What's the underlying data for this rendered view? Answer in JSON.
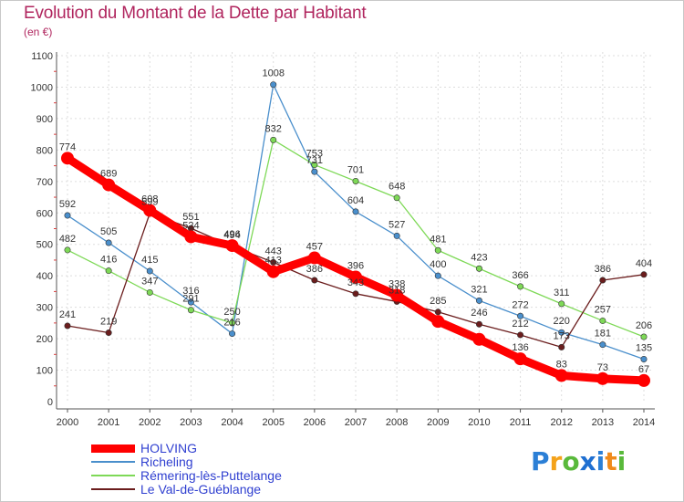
{
  "title": "Evolution du Montant de la Dette par Habitant",
  "subtitle": "(en €)",
  "logo": [
    "P",
    "r",
    "o",
    "x",
    "i",
    "t",
    "i"
  ],
  "chart_data": {
    "type": "line",
    "ylim": [
      0,
      1100
    ],
    "yticks": [
      0,
      100,
      200,
      300,
      400,
      500,
      600,
      700,
      800,
      900,
      1000,
      1100
    ],
    "x": [
      "2000",
      "2001",
      "2002",
      "2003",
      "2004",
      "2005",
      "2006",
      "2007",
      "2008",
      "2009",
      "2010",
      "2011",
      "2012",
      "2013",
      "2014"
    ],
    "grid": true,
    "legend_position": "bottom-left",
    "series": [
      {
        "name": "HOLVING",
        "color": "#ff0000",
        "values": [
          774,
          689,
          608,
          524,
          496,
          413,
          457,
          396,
          338,
          255,
          198,
          136,
          83,
          73,
          67
        ],
        "labels": [
          "774",
          "689",
          "608",
          "524",
          "496",
          "413",
          "457",
          "396",
          "338",
          "",
          "",
          "136",
          "83",
          "73",
          "67"
        ]
      },
      {
        "name": "Richeling",
        "color": "#4a8fcc",
        "values": [
          592,
          505,
          415,
          316,
          216,
          1008,
          731,
          604,
          527,
          400,
          321,
          272,
          220,
          181,
          135
        ],
        "labels": [
          "592",
          "505",
          "415",
          "316",
          "216",
          "1008",
          "731",
          "604",
          "527",
          "400",
          "321",
          "272",
          "220",
          "181",
          "135"
        ]
      },
      {
        "name": "Rémering-lès-Puttelange",
        "color": "#7ed957",
        "values": [
          482,
          416,
          347,
          291,
          250,
          832,
          753,
          701,
          648,
          481,
          423,
          366,
          311,
          257,
          206
        ],
        "labels": [
          "482",
          "416",
          "347",
          "291",
          "250",
          "832",
          "753",
          "701",
          "648",
          "481",
          "423",
          "366",
          "311",
          "257",
          "206"
        ]
      },
      {
        "name": "Le Val-de-Guéblange",
        "color": "#6b1d1d",
        "values": [
          241,
          219,
          599,
          551,
          494,
          443,
          386,
          343,
          318,
          285,
          246,
          212,
          173,
          386,
          404
        ],
        "labels": [
          "241",
          "219",
          "599",
          "551",
          "494",
          "443",
          "386",
          "343",
          "318",
          "285",
          "246",
          "212",
          "173",
          "386",
          "404"
        ]
      }
    ]
  }
}
